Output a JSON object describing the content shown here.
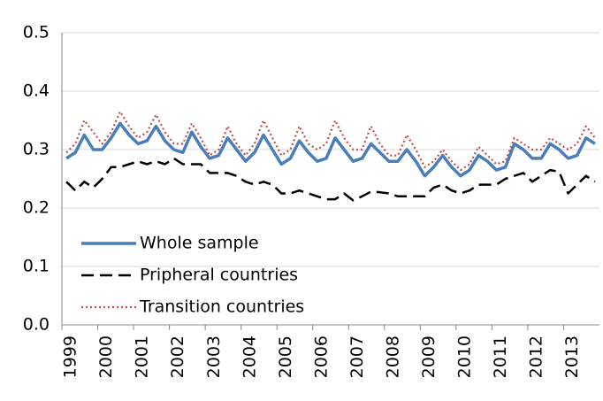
{
  "chart_data": {
    "type": "line",
    "categories": [
      "1999",
      null,
      null,
      null,
      "2000",
      null,
      null,
      null,
      "2001",
      null,
      null,
      null,
      "2002",
      null,
      null,
      null,
      "2003",
      null,
      null,
      null,
      "2004",
      null,
      null,
      null,
      "2005",
      null,
      null,
      null,
      "2006",
      null,
      null,
      null,
      "2007",
      null,
      null,
      null,
      "2008",
      null,
      null,
      null,
      "2009",
      null,
      null,
      null,
      "2010",
      null,
      null,
      null,
      "2011",
      null,
      null,
      null,
      "2012",
      null,
      null,
      null,
      "2013",
      null,
      null,
      null
    ],
    "series": [
      {
        "name": "Whole sample",
        "color": "#4a7ebb",
        "style": "solid",
        "values": [
          0.285,
          0.295,
          0.325,
          0.3,
          0.3,
          0.32,
          0.345,
          0.325,
          0.31,
          0.315,
          0.34,
          0.315,
          0.3,
          0.295,
          0.33,
          0.305,
          0.285,
          0.29,
          0.32,
          0.3,
          0.28,
          0.295,
          0.325,
          0.3,
          0.275,
          0.285,
          0.315,
          0.295,
          0.28,
          0.285,
          0.32,
          0.3,
          0.28,
          0.285,
          0.31,
          0.295,
          0.28,
          0.28,
          0.3,
          0.28,
          0.255,
          0.27,
          0.29,
          0.27,
          0.255,
          0.265,
          0.29,
          0.28,
          0.265,
          0.27,
          0.31,
          0.3,
          0.285,
          0.285,
          0.31,
          0.3,
          0.285,
          0.29,
          0.32,
          0.31
        ]
      },
      {
        "name": "Pripheral countries",
        "color": "#000000",
        "style": "dashed",
        "values": [
          0.245,
          0.23,
          0.245,
          0.235,
          0.25,
          0.27,
          0.27,
          0.275,
          0.28,
          0.275,
          0.28,
          0.275,
          0.285,
          0.275,
          0.275,
          0.275,
          0.26,
          0.26,
          0.26,
          0.255,
          0.245,
          0.24,
          0.245,
          0.24,
          0.225,
          0.225,
          0.23,
          0.225,
          0.22,
          0.215,
          0.215,
          0.225,
          0.213,
          0.22,
          0.228,
          0.227,
          0.225,
          0.22,
          0.22,
          0.22,
          0.22,
          0.235,
          0.24,
          0.23,
          0.225,
          0.23,
          0.24,
          0.24,
          0.24,
          0.25,
          0.255,
          0.26,
          0.245,
          0.255,
          0.265,
          0.262,
          0.225,
          0.24,
          0.255,
          0.245
        ]
      },
      {
        "name": "Transition countries",
        "color": "#c0504d",
        "style": "dotted",
        "values": [
          0.295,
          0.31,
          0.35,
          0.33,
          0.31,
          0.33,
          0.365,
          0.34,
          0.32,
          0.33,
          0.36,
          0.33,
          0.31,
          0.31,
          0.345,
          0.32,
          0.29,
          0.3,
          0.34,
          0.31,
          0.29,
          0.31,
          0.35,
          0.32,
          0.29,
          0.3,
          0.34,
          0.31,
          0.3,
          0.31,
          0.35,
          0.32,
          0.3,
          0.3,
          0.34,
          0.31,
          0.29,
          0.29,
          0.325,
          0.3,
          0.27,
          0.28,
          0.3,
          0.28,
          0.265,
          0.275,
          0.305,
          0.29,
          0.275,
          0.28,
          0.32,
          0.31,
          0.3,
          0.3,
          0.32,
          0.31,
          0.3,
          0.31,
          0.34,
          0.32
        ]
      }
    ],
    "ylim": [
      0,
      0.5
    ],
    "yticks": [
      {
        "value": 0,
        "label": "0.0"
      },
      0.1,
      0.2,
      0.3,
      0.4,
      0.5
    ],
    "grid": true
  }
}
